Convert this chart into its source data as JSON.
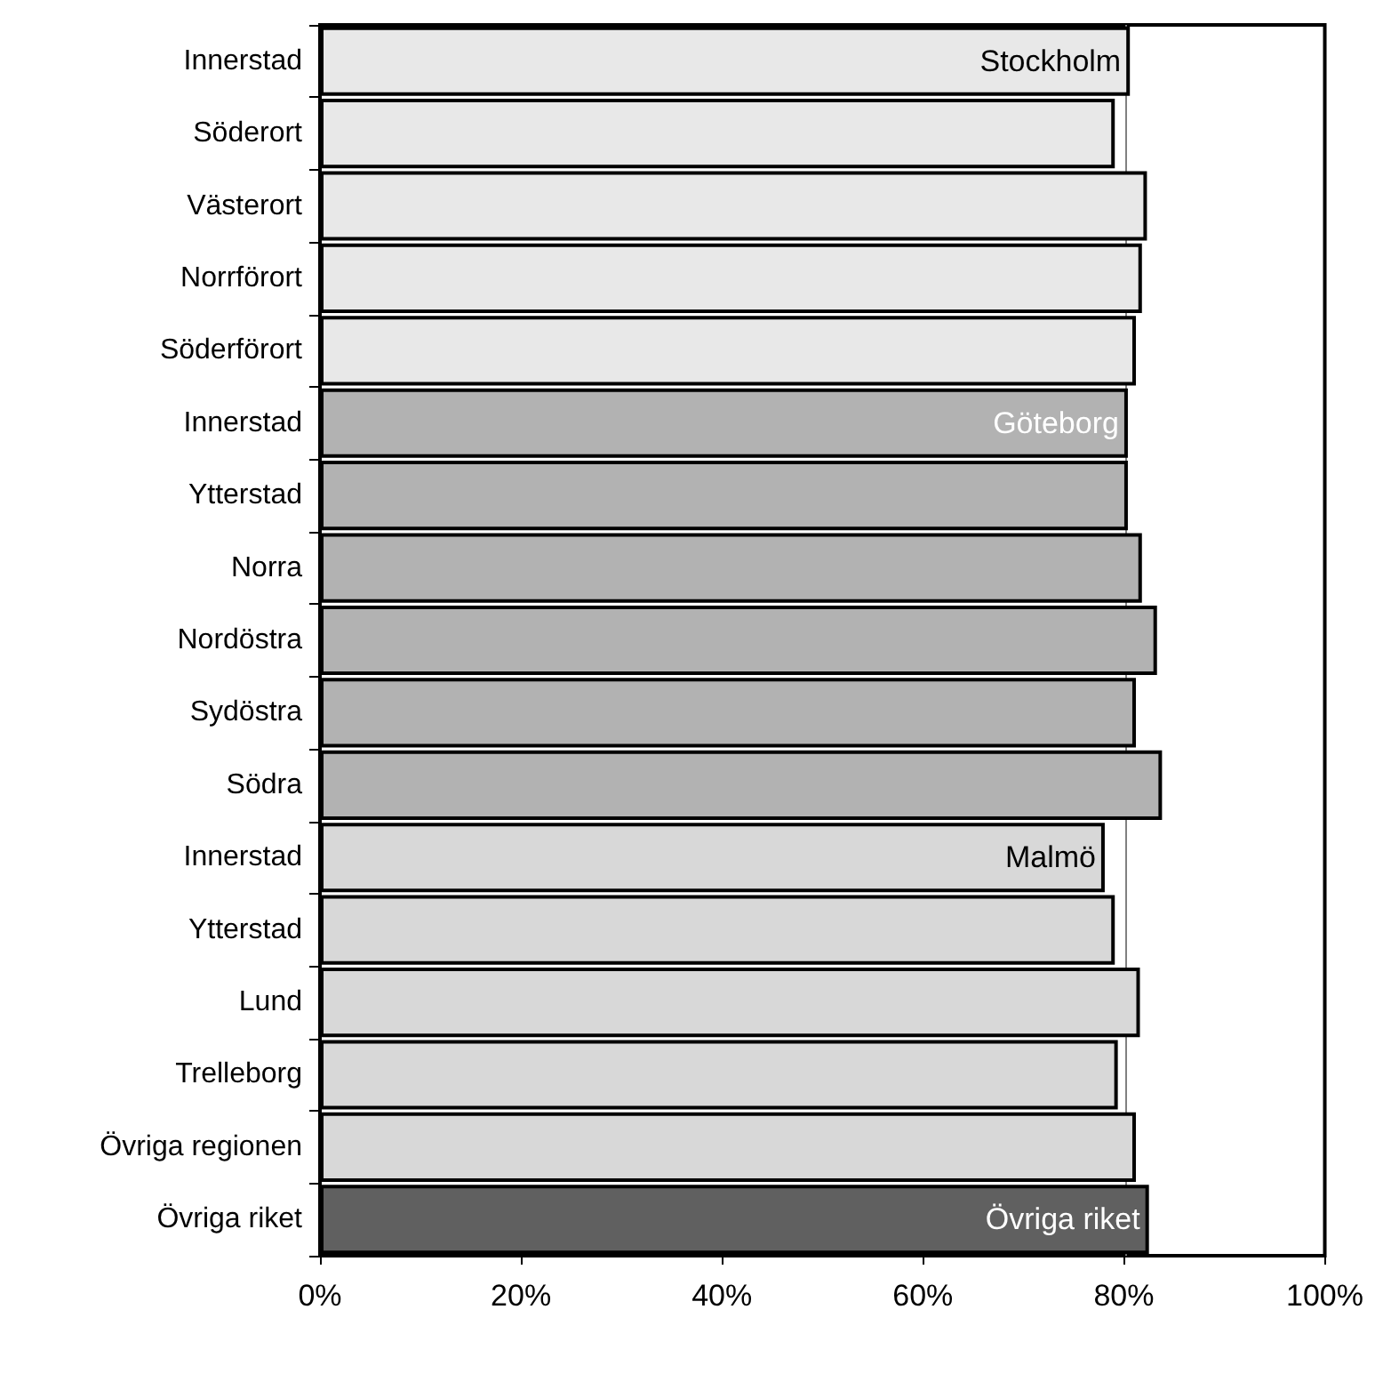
{
  "chart_data": {
    "type": "bar",
    "orientation": "horizontal",
    "categories": [
      "Innerstad",
      "Söderort",
      "Västerort",
      "Norrförort",
      "Söderförort",
      "Innerstad",
      "Ytterstad",
      "Norra",
      "Nordöstra",
      "Sydöstra",
      "Södra",
      "Innerstad",
      "Ytterstad",
      "Lund",
      "Trelleborg",
      "Övriga regionen",
      "Övriga riket"
    ],
    "values": [
      80.6,
      79.1,
      82.3,
      81.8,
      81.2,
      80.4,
      80.4,
      81.8,
      83.3,
      81.2,
      83.8,
      78.1,
      79.1,
      81.6,
      79.4,
      81.2,
      82.5
    ],
    "colors": [
      "#e8e8e8",
      "#e8e8e8",
      "#e8e8e8",
      "#e8e8e8",
      "#e8e8e8",
      "#b2b2b2",
      "#b2b2b2",
      "#b2b2b2",
      "#b2b2b2",
      "#b2b2b2",
      "#b2b2b2",
      "#d8d8d8",
      "#d8d8d8",
      "#d8d8d8",
      "#d8d8d8",
      "#d8d8d8",
      "#606060"
    ],
    "value_labels": [
      "Stockholm",
      null,
      null,
      null,
      null,
      "Göteborg",
      null,
      null,
      null,
      null,
      null,
      "Malmö",
      null,
      null,
      null,
      null,
      "Övriga riket"
    ],
    "xlim": [
      0,
      100
    ],
    "xticks": [
      {
        "value": 0,
        "label": "0%"
      },
      {
        "value": 20,
        "label": "20%"
      },
      {
        "value": 40,
        "label": "40%"
      },
      {
        "value": 60,
        "label": "60%"
      },
      {
        "value": 80,
        "label": "80%"
      },
      {
        "value": 100,
        "label": "100%"
      }
    ],
    "ref_lines": [
      {
        "axis": "x",
        "value": 80.2,
        "color": "#808080"
      }
    ],
    "grid": false
  }
}
